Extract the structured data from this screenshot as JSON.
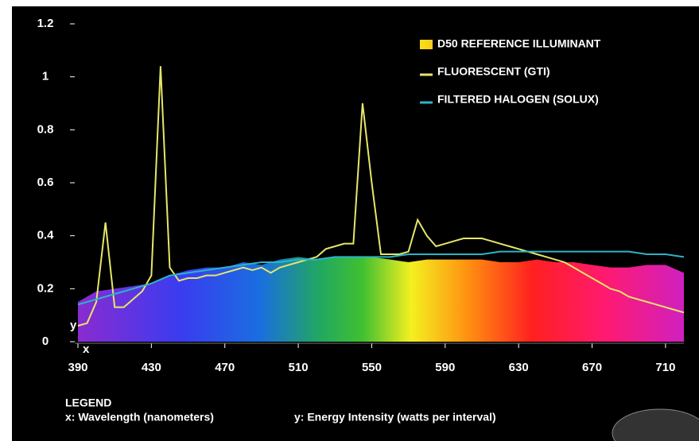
{
  "chart_data": {
    "type": "line",
    "series": [
      {
        "name": "D50 REFERENCE ILLUMINANT",
        "fill": "spectrum",
        "x": [
          390,
          400,
          410,
          420,
          430,
          440,
          450,
          460,
          470,
          480,
          490,
          500,
          510,
          520,
          530,
          540,
          550,
          560,
          570,
          580,
          590,
          600,
          610,
          620,
          630,
          640,
          650,
          660,
          670,
          680,
          690,
          700,
          710,
          720
        ],
        "values": [
          0.15,
          0.19,
          0.2,
          0.21,
          0.22,
          0.25,
          0.27,
          0.28,
          0.28,
          0.3,
          0.29,
          0.31,
          0.32,
          0.31,
          0.32,
          0.32,
          0.32,
          0.31,
          0.3,
          0.31,
          0.31,
          0.31,
          0.31,
          0.3,
          0.3,
          0.31,
          0.3,
          0.3,
          0.29,
          0.28,
          0.28,
          0.29,
          0.29,
          0.26
        ]
      },
      {
        "name": "FLUORESCENT (GTI)",
        "color": "#e6e66a",
        "x": [
          390,
          395,
          400,
          405,
          410,
          415,
          420,
          425,
          430,
          435,
          440,
          445,
          450,
          455,
          460,
          465,
          470,
          475,
          480,
          485,
          490,
          495,
          500,
          505,
          510,
          515,
          520,
          525,
          530,
          535,
          540,
          545,
          550,
          555,
          560,
          565,
          570,
          575,
          580,
          585,
          590,
          595,
          600,
          605,
          610,
          615,
          620,
          625,
          630,
          635,
          640,
          645,
          650,
          655,
          660,
          665,
          670,
          675,
          680,
          685,
          690,
          695,
          700,
          705,
          710,
          715,
          720
        ],
        "values": [
          0.06,
          0.07,
          0.15,
          0.45,
          0.13,
          0.13,
          0.16,
          0.19,
          0.25,
          1.04,
          0.28,
          0.23,
          0.24,
          0.24,
          0.25,
          0.25,
          0.26,
          0.27,
          0.28,
          0.27,
          0.28,
          0.26,
          0.28,
          0.29,
          0.3,
          0.31,
          0.32,
          0.35,
          0.36,
          0.37,
          0.37,
          0.9,
          0.6,
          0.33,
          0.33,
          0.33,
          0.34,
          0.46,
          0.4,
          0.36,
          0.37,
          0.38,
          0.39,
          0.39,
          0.39,
          0.38,
          0.37,
          0.36,
          0.35,
          0.34,
          0.33,
          0.32,
          0.31,
          0.3,
          0.28,
          0.26,
          0.24,
          0.22,
          0.2,
          0.19,
          0.17,
          0.16,
          0.15,
          0.14,
          0.13,
          0.12,
          0.11
        ]
      },
      {
        "name": "FILTERED HALOGEN (SOLUX)",
        "color": "#2ab5c8",
        "x": [
          390,
          400,
          410,
          420,
          430,
          440,
          450,
          460,
          470,
          480,
          490,
          500,
          510,
          520,
          530,
          540,
          550,
          560,
          570,
          580,
          590,
          600,
          610,
          620,
          630,
          640,
          650,
          660,
          670,
          680,
          690,
          700,
          710,
          720
        ],
        "values": [
          0.14,
          0.16,
          0.18,
          0.2,
          0.22,
          0.25,
          0.26,
          0.27,
          0.28,
          0.29,
          0.3,
          0.3,
          0.31,
          0.31,
          0.32,
          0.32,
          0.32,
          0.32,
          0.33,
          0.33,
          0.33,
          0.33,
          0.33,
          0.34,
          0.34,
          0.34,
          0.34,
          0.34,
          0.34,
          0.34,
          0.34,
          0.33,
          0.33,
          0.32
        ]
      }
    ],
    "xlim": [
      390,
      720
    ],
    "xticks": [
      390,
      430,
      470,
      510,
      550,
      590,
      630,
      670,
      710
    ],
    "ylim": [
      0,
      1.2
    ],
    "yticks": [
      0,
      0.2,
      0.4,
      0.6,
      0.8,
      1,
      1.2
    ],
    "x_axis_marker": "x",
    "y_axis_marker": "y",
    "legend_title": "LEGEND",
    "x_label": "x: Wavelength (nanometers)",
    "y_label": "y: Energy Intensity (watts per interval)",
    "legend": "top-right"
  }
}
